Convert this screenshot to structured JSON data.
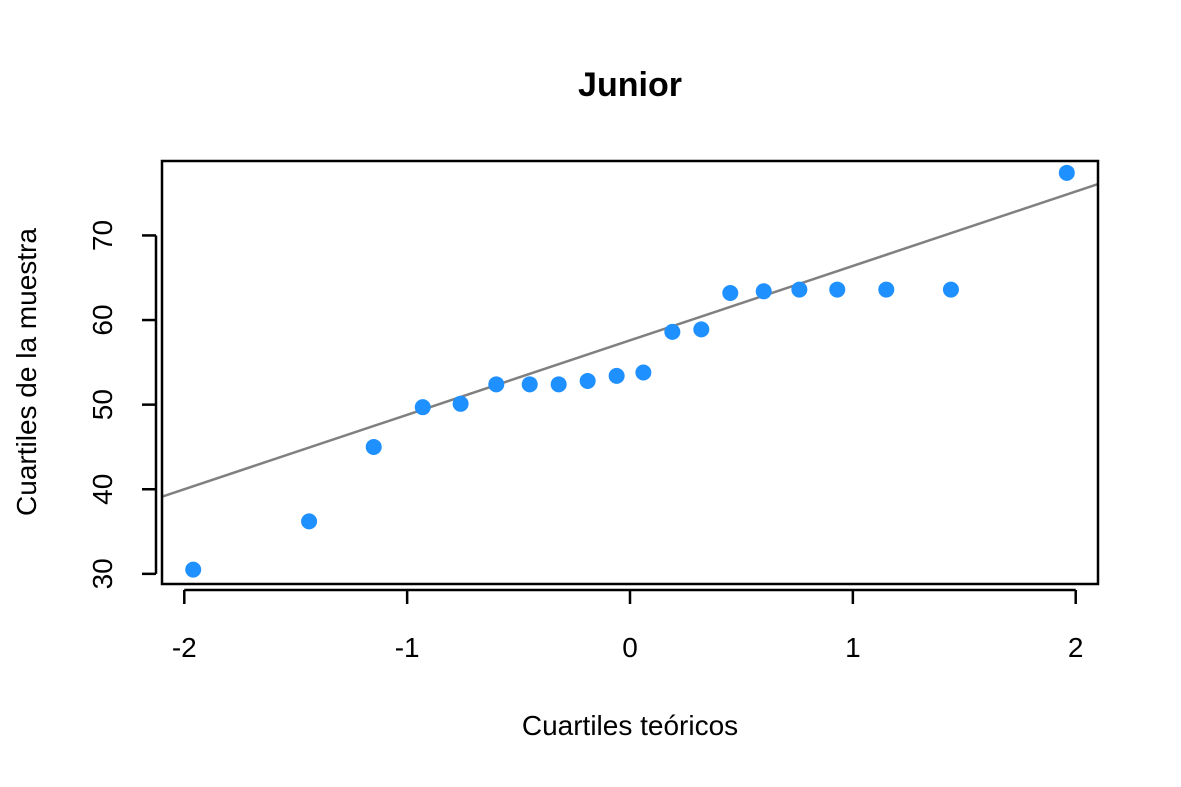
{
  "chart_data": {
    "type": "scatter",
    "title": "Junior",
    "xlabel": "Cuartiles teóricos",
    "ylabel": "Cuartiles de la muestra",
    "xlim": [
      -2.1,
      2.1
    ],
    "ylim": [
      28.8,
      78.8
    ],
    "xticks": [
      -2,
      -1,
      0,
      1,
      2
    ],
    "xtick_labels": [
      "-2",
      "-1",
      "0",
      "1",
      "2"
    ],
    "yticks": [
      30,
      40,
      50,
      60,
      70
    ],
    "ytick_labels": [
      "30",
      "40",
      "50",
      "60",
      "70"
    ],
    "grid": false,
    "legend": "none",
    "point_color": "#1E90FF",
    "line_color": "#808080",
    "points": [
      {
        "x": -1.96,
        "y": 30.5
      },
      {
        "x": -1.44,
        "y": 36.2
      },
      {
        "x": -1.15,
        "y": 45.0
      },
      {
        "x": -0.93,
        "y": 49.7
      },
      {
        "x": -0.76,
        "y": 50.1
      },
      {
        "x": -0.6,
        "y": 52.4
      },
      {
        "x": -0.45,
        "y": 52.4
      },
      {
        "x": -0.32,
        "y": 52.4
      },
      {
        "x": -0.19,
        "y": 52.8
      },
      {
        "x": -0.06,
        "y": 53.4
      },
      {
        "x": 0.06,
        "y": 53.8
      },
      {
        "x": 0.19,
        "y": 58.6
      },
      {
        "x": 0.32,
        "y": 58.9
      },
      {
        "x": 0.45,
        "y": 63.2
      },
      {
        "x": 0.6,
        "y": 63.4
      },
      {
        "x": 0.76,
        "y": 63.6
      },
      {
        "x": 0.93,
        "y": 63.6
      },
      {
        "x": 1.15,
        "y": 63.6
      },
      {
        "x": 1.44,
        "y": 63.6
      },
      {
        "x": 1.96,
        "y": 77.4
      }
    ],
    "reference_line": {
      "intercept": 57.6,
      "slope": 8.8
    }
  }
}
